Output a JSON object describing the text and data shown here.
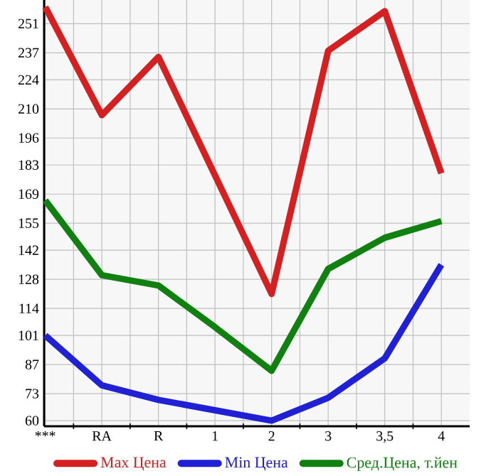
{
  "chart_data": {
    "type": "line",
    "categories": [
      "***",
      "RA",
      "R",
      "1",
      "2",
      "3",
      "3,5",
      "4"
    ],
    "series": [
      {
        "name": "Max Цена",
        "color": "#d42020",
        "values": [
          259,
          207,
          235,
          178,
          121,
          238,
          257,
          179
        ]
      },
      {
        "name": "Min Цена",
        "color": "#2020d4",
        "values": [
          101,
          77,
          70,
          65,
          60,
          71,
          90,
          135
        ]
      },
      {
        "name": "Сред.Цена, т.йен",
        "color": "#108010",
        "values": [
          166,
          130,
          125,
          105,
          84,
          133,
          148,
          156
        ]
      }
    ],
    "ylim": [
      57.3,
      262.4
    ],
    "yticks": [
      60,
      73,
      87,
      101,
      114,
      128,
      142,
      155,
      169,
      183,
      196,
      210,
      224,
      237,
      251
    ],
    "grid": true,
    "legend": "bottom",
    "marker": "none",
    "line_style": "solid"
  }
}
